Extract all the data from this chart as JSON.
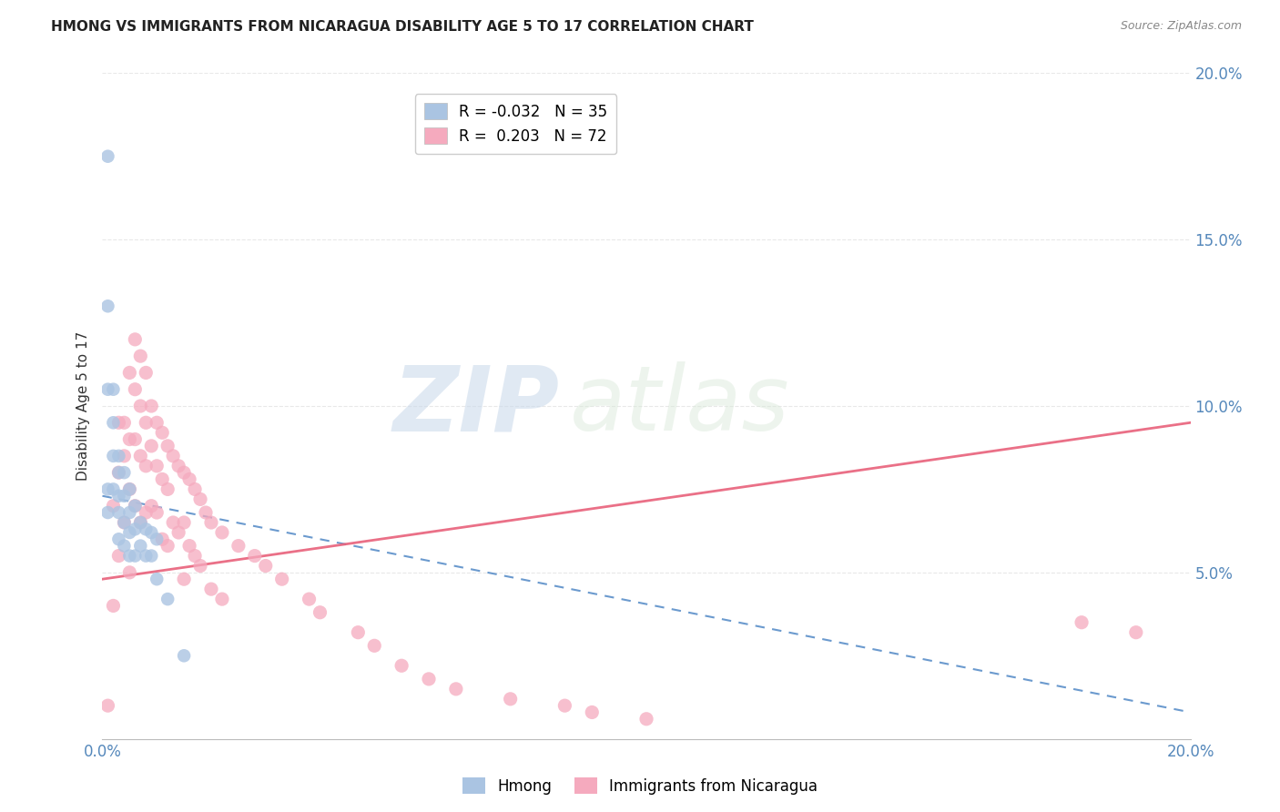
{
  "title": "HMONG VS IMMIGRANTS FROM NICARAGUA DISABILITY AGE 5 TO 17 CORRELATION CHART",
  "source": "Source: ZipAtlas.com",
  "ylabel": "Disability Age 5 to 17",
  "xlim": [
    0.0,
    0.2
  ],
  "ylim": [
    0.0,
    0.2
  ],
  "xtick_vals": [
    0.0,
    0.05,
    0.1,
    0.15,
    0.2
  ],
  "xtick_labels": [
    "0.0%",
    "",
    "",
    "",
    "20.0%"
  ],
  "ytick_vals_right": [
    0.05,
    0.1,
    0.15,
    0.2
  ],
  "ytick_labels_right": [
    "5.0%",
    "10.0%",
    "15.0%",
    "20.0%"
  ],
  "legend_blue_r": "-0.032",
  "legend_blue_n": "35",
  "legend_pink_r": "0.203",
  "legend_pink_n": "72",
  "blue_color": "#aac4e2",
  "pink_color": "#f5aabe",
  "blue_line_color": "#5b8fc9",
  "pink_line_color": "#e8607a",
  "watermark_zip": "ZIP",
  "watermark_atlas": "atlas",
  "background_color": "#ffffff",
  "grid_color": "#e8e8e8",
  "hmong_x": [
    0.001,
    0.001,
    0.001,
    0.001,
    0.001,
    0.002,
    0.002,
    0.002,
    0.002,
    0.003,
    0.003,
    0.003,
    0.003,
    0.003,
    0.004,
    0.004,
    0.004,
    0.004,
    0.005,
    0.005,
    0.005,
    0.005,
    0.006,
    0.006,
    0.006,
    0.007,
    0.007,
    0.008,
    0.008,
    0.009,
    0.009,
    0.01,
    0.01,
    0.012,
    0.015
  ],
  "hmong_y": [
    0.175,
    0.13,
    0.105,
    0.075,
    0.068,
    0.105,
    0.095,
    0.085,
    0.075,
    0.085,
    0.08,
    0.073,
    0.068,
    0.06,
    0.08,
    0.073,
    0.065,
    0.058,
    0.075,
    0.068,
    0.062,
    0.055,
    0.07,
    0.063,
    0.055,
    0.065,
    0.058,
    0.063,
    0.055,
    0.062,
    0.055,
    0.06,
    0.048,
    0.042,
    0.025
  ],
  "nicaragua_x": [
    0.001,
    0.002,
    0.002,
    0.003,
    0.003,
    0.003,
    0.004,
    0.004,
    0.004,
    0.005,
    0.005,
    0.005,
    0.005,
    0.006,
    0.006,
    0.006,
    0.006,
    0.007,
    0.007,
    0.007,
    0.007,
    0.008,
    0.008,
    0.008,
    0.008,
    0.009,
    0.009,
    0.009,
    0.01,
    0.01,
    0.01,
    0.011,
    0.011,
    0.011,
    0.012,
    0.012,
    0.012,
    0.013,
    0.013,
    0.014,
    0.014,
    0.015,
    0.015,
    0.015,
    0.016,
    0.016,
    0.017,
    0.017,
    0.018,
    0.018,
    0.019,
    0.02,
    0.02,
    0.022,
    0.022,
    0.025,
    0.028,
    0.03,
    0.033,
    0.038,
    0.04,
    0.047,
    0.05,
    0.055,
    0.06,
    0.065,
    0.075,
    0.085,
    0.09,
    0.1,
    0.18,
    0.19
  ],
  "nicaragua_y": [
    0.01,
    0.07,
    0.04,
    0.095,
    0.08,
    0.055,
    0.095,
    0.085,
    0.065,
    0.11,
    0.09,
    0.075,
    0.05,
    0.12,
    0.105,
    0.09,
    0.07,
    0.115,
    0.1,
    0.085,
    0.065,
    0.11,
    0.095,
    0.082,
    0.068,
    0.1,
    0.088,
    0.07,
    0.095,
    0.082,
    0.068,
    0.092,
    0.078,
    0.06,
    0.088,
    0.075,
    0.058,
    0.085,
    0.065,
    0.082,
    0.062,
    0.08,
    0.065,
    0.048,
    0.078,
    0.058,
    0.075,
    0.055,
    0.072,
    0.052,
    0.068,
    0.065,
    0.045,
    0.062,
    0.042,
    0.058,
    0.055,
    0.052,
    0.048,
    0.042,
    0.038,
    0.032,
    0.028,
    0.022,
    0.018,
    0.015,
    0.012,
    0.01,
    0.008,
    0.006,
    0.035,
    0.032
  ],
  "blue_line_x0": 0.0,
  "blue_line_y0": 0.073,
  "blue_line_x1": 0.2,
  "blue_line_y1": 0.008,
  "pink_line_x0": 0.0,
  "pink_line_y0": 0.048,
  "pink_line_x1": 0.2,
  "pink_line_y1": 0.095
}
